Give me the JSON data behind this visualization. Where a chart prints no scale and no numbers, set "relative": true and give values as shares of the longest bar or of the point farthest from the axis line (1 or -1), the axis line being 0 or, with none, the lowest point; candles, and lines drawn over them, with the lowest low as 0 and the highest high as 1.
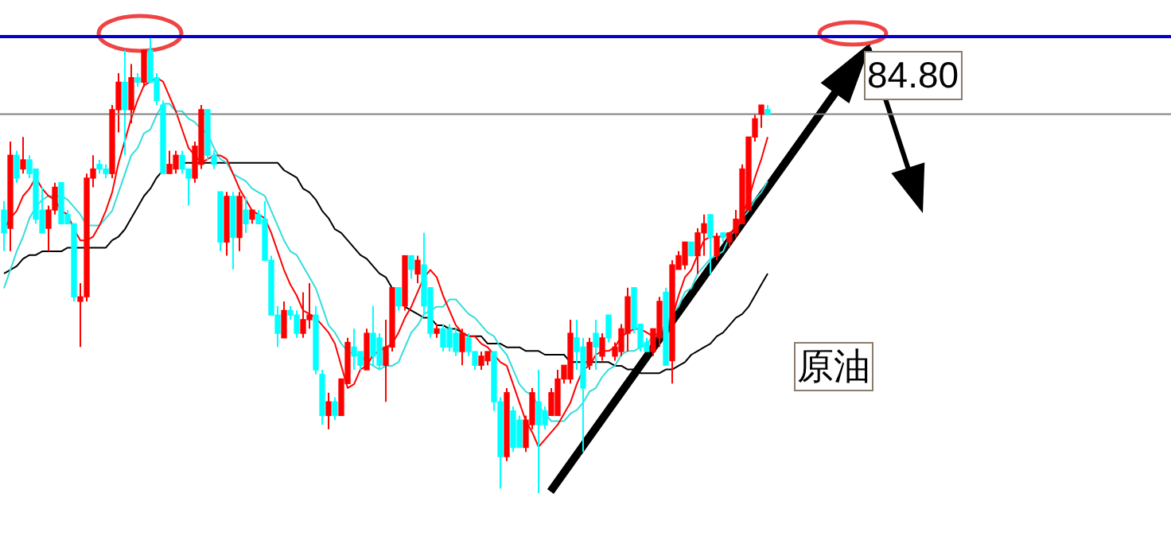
{
  "chart_data": [
    {
      "type": "candlestick",
      "relative": true,
      "categories": [
        null,
        null,
        null,
        null,
        null,
        null,
        null,
        null,
        null,
        null,
        null,
        null,
        null,
        null,
        null,
        null,
        null,
        null,
        null,
        null,
        null,
        null,
        null,
        null,
        null,
        null,
        null,
        null,
        null,
        null,
        null,
        null,
        null,
        null,
        null,
        null,
        null,
        null,
        null,
        null,
        null,
        null,
        null,
        null,
        null,
        null,
        null,
        null,
        null,
        null,
        null,
        null,
        null,
        null,
        null,
        null,
        null,
        null,
        null,
        null,
        null,
        null,
        null,
        null,
        null,
        null,
        null,
        null,
        null,
        null,
        null,
        null,
        null,
        null,
        null,
        null,
        null,
        null,
        null,
        null,
        null,
        null,
        null,
        null,
        null,
        null,
        null,
        null,
        null,
        null,
        null,
        null,
        null,
        null,
        null,
        null,
        null,
        null,
        null,
        null,
        null,
        null,
        null,
        null,
        null,
        null,
        null,
        null,
        null,
        null,
        null,
        null,
        null,
        null,
        null,
        null,
        null,
        null,
        null,
        null,
        null
      ],
      "ohlc": [
        [
          0.62,
          0.64,
          0.53,
          0.57
        ],
        [
          0.58,
          0.77,
          0.53,
          0.74
        ],
        [
          0.74,
          0.75,
          0.68,
          0.69
        ],
        [
          0.71,
          0.78,
          0.7,
          0.73
        ],
        [
          0.73,
          0.74,
          0.69,
          0.7
        ],
        [
          0.71,
          0.71,
          0.59,
          0.6
        ],
        [
          0.62,
          0.67,
          0.57,
          0.57
        ],
        [
          0.58,
          0.63,
          0.53,
          0.62
        ],
        [
          0.62,
          0.68,
          0.61,
          0.67
        ],
        [
          0.68,
          0.68,
          0.59,
          0.59
        ],
        [
          0.61,
          0.62,
          0.59,
          0.59
        ],
        [
          0.59,
          0.59,
          0.42,
          0.43
        ],
        [
          0.42,
          0.46,
          0.32,
          0.43
        ],
        [
          0.43,
          0.7,
          0.42,
          0.69
        ],
        [
          0.69,
          0.74,
          0.67,
          0.71
        ],
        [
          0.72,
          0.73,
          0.7,
          0.71
        ],
        [
          0.71,
          0.72,
          0.69,
          0.7
        ],
        [
          0.7,
          0.85,
          0.69,
          0.84
        ],
        [
          0.84,
          0.92,
          0.79,
          0.9
        ],
        [
          0.9,
          0.97,
          0.74,
          0.84
        ],
        [
          0.84,
          0.94,
          0.81,
          0.91
        ],
        [
          0.91,
          0.92,
          0.89,
          0.9
        ],
        [
          0.9,
          0.97,
          0.89,
          0.97
        ],
        [
          0.97,
          1,
          0.9,
          0.9
        ],
        [
          0.91,
          0.92,
          0.85,
          0.86
        ],
        [
          0.85,
          0.86,
          0.7,
          0.7
        ],
        [
          0.7,
          0.75,
          0.7,
          0.72
        ],
        [
          0.71,
          0.75,
          0.7,
          0.74
        ],
        [
          0.74,
          0.75,
          0.7,
          0.71
        ],
        [
          0.71,
          0.71,
          0.63,
          0.69
        ],
        [
          0.69,
          0.77,
          0.68,
          0.76
        ],
        [
          0.72,
          0.85,
          0.71,
          0.84
        ],
        [
          0.84,
          0.84,
          0.73,
          0.74
        ],
        [
          0.74,
          0.75,
          0.71,
          0.72
        ],
        [
          0.66,
          0.66,
          0.53,
          0.55
        ],
        [
          0.55,
          0.66,
          0.52,
          0.65
        ],
        [
          0.65,
          0.66,
          0.49,
          0.56
        ],
        [
          0.56,
          0.66,
          0.53,
          0.65
        ],
        [
          0.62,
          0.65,
          0.57,
          0.59
        ],
        [
          0.6,
          0.62,
          0.59,
          0.62
        ],
        [
          0.61,
          0.62,
          0.59,
          0.59
        ],
        [
          0.6,
          0.64,
          0.51,
          0.51
        ],
        [
          0.51,
          0.52,
          0.39,
          0.39
        ],
        [
          0.39,
          0.41,
          0.32,
          0.35
        ],
        [
          0.34,
          0.42,
          0.34,
          0.4
        ],
        [
          0.4,
          0.41,
          0.38,
          0.39
        ],
        [
          0.39,
          0.4,
          0.34,
          0.35
        ],
        [
          0.35,
          0.44,
          0.34,
          0.38
        ],
        [
          0.38,
          0.46,
          0.36,
          0.39
        ],
        [
          0.39,
          0.41,
          0.26,
          0.27
        ],
        [
          0.26,
          0.27,
          0.15,
          0.17
        ],
        [
          0.17,
          0.22,
          0.14,
          0.2
        ],
        [
          0.2,
          0.21,
          0.16,
          0.17
        ],
        [
          0.17,
          0.25,
          0.17,
          0.25
        ],
        [
          0.24,
          0.34,
          0.24,
          0.33
        ],
        [
          0.32,
          0.36,
          0.27,
          0.3
        ],
        [
          0.31,
          0.31,
          0.27,
          0.28
        ],
        [
          0.27,
          0.36,
          0.27,
          0.35
        ],
        [
          0.35,
          0.41,
          0.28,
          0.3
        ],
        [
          0.34,
          0.35,
          0.27,
          0.28
        ],
        [
          0.28,
          0.38,
          0.2,
          0.32
        ],
        [
          0.32,
          0.45,
          0.31,
          0.45
        ],
        [
          0.45,
          0.45,
          0.4,
          0.41
        ],
        [
          0.41,
          0.52,
          0.4,
          0.52
        ],
        [
          0.52,
          0.52,
          0.47,
          0.49
        ],
        [
          0.48,
          0.52,
          0.46,
          0.51
        ],
        [
          0.5,
          0.57,
          0.39,
          0.41
        ],
        [
          0.45,
          0.45,
          0.34,
          0.35
        ],
        [
          0.35,
          0.37,
          0.34,
          0.36
        ],
        [
          0.36,
          0.37,
          0.31,
          0.32
        ],
        [
          0.36,
          0.37,
          0.31,
          0.32
        ],
        [
          0.35,
          0.36,
          0.3,
          0.31
        ],
        [
          0.31,
          0.36,
          0.28,
          0.35
        ],
        [
          0.34,
          0.35,
          0.3,
          0.31
        ],
        [
          0.31,
          0.31,
          0.27,
          0.28
        ],
        [
          0.28,
          0.31,
          0.27,
          0.3
        ],
        [
          0.29,
          0.31,
          0.28,
          0.31
        ],
        [
          0.31,
          0.31,
          0.18,
          0.2
        ],
        [
          0.2,
          0.21,
          0.01,
          0.08
        ],
        [
          0.08,
          0.23,
          0.07,
          0.22
        ],
        [
          0.18,
          0.19,
          0.09,
          0.1
        ],
        [
          0.16,
          0.17,
          0.1,
          0.1
        ],
        [
          0.1,
          0.17,
          0.09,
          0.16
        ],
        [
          0.15,
          0.23,
          0.14,
          0.22
        ],
        [
          0.2,
          0.27,
          0,
          0.15
        ],
        [
          0.18,
          0.19,
          0.14,
          0.15
        ],
        [
          0.17,
          0.23,
          0.17,
          0.22
        ],
        [
          0.17,
          0.27,
          0.17,
          0.25
        ],
        [
          0.25,
          0.28,
          0.24,
          0.28
        ],
        [
          0.25,
          0.38,
          0.24,
          0.35
        ],
        [
          0.34,
          0.38,
          0.27,
          0.31
        ],
        [
          0.32,
          0.34,
          0.09,
          0.23
        ],
        [
          0.28,
          0.34,
          0.27,
          0.33
        ],
        [
          0.35,
          0.38,
          0.27,
          0.32
        ],
        [
          0.3,
          0.35,
          0.29,
          0.34
        ],
        [
          0.39,
          0.39,
          0.33,
          0.34
        ],
        [
          0.3,
          0.33,
          0.29,
          0.32
        ],
        [
          0.31,
          0.37,
          0.3,
          0.36
        ],
        [
          0.35,
          0.45,
          0.31,
          0.43
        ],
        [
          0.45,
          0.45,
          0.35,
          0.36
        ],
        [
          0.37,
          0.37,
          0.31,
          0.32
        ],
        [
          0.33,
          0.34,
          0.31,
          0.31
        ],
        [
          0.31,
          0.36,
          0.3,
          0.36
        ],
        [
          0.34,
          0.43,
          0.32,
          0.42
        ],
        [
          0.44,
          0.45,
          0.28,
          0.28
        ],
        [
          0.29,
          0.51,
          0.24,
          0.5
        ],
        [
          0.49,
          0.53,
          0.49,
          0.52
        ],
        [
          0.5,
          0.55,
          0.49,
          0.55
        ],
        [
          0.55,
          0.55,
          0.52,
          0.52
        ],
        [
          0.52,
          0.58,
          0.48,
          0.57
        ],
        [
          0.57,
          0.61,
          0.52,
          0.59
        ],
        [
          0.61,
          0.61,
          0.48,
          0.56
        ],
        [
          0.52,
          0.57,
          0.51,
          0.56
        ],
        [
          0.57,
          0.57,
          0.55,
          0.56
        ],
        [
          0.55,
          0.57,
          0.54,
          0.57
        ],
        [
          0.57,
          0.62,
          0.56,
          0.6
        ],
        [
          0.59,
          0.72,
          0.59,
          0.71
        ],
        [
          0.62,
          0.78,
          0.62,
          0.78
        ],
        [
          0.78,
          0.83,
          0.77,
          0.82
        ],
        [
          0.83,
          0.85,
          0.8,
          0.85
        ],
        [
          0.84,
          0.85,
          0.83,
          0.83
        ]
      ],
      "colors": [
        "#00ffff",
        "#ff0000",
        "#00ffff",
        "#ff0000",
        "#00ffff",
        "#00ffff",
        "#00ffff",
        "#ff0000",
        "#ff0000",
        "#00ffff",
        "#00ffff",
        "#00ffff",
        "#ff0000",
        "#ff0000",
        "#ff0000",
        "#00ffff",
        "#00ffff",
        "#ff0000",
        "#ff0000",
        "#00ffff",
        "#ff0000",
        "#00ffff",
        "#ff0000",
        "#00ffff",
        "#00ffff",
        "#00ffff",
        "#ff0000",
        "#ff0000",
        "#00ffff",
        "#00ffff",
        "#ff0000",
        "#ff0000",
        "#00ffff",
        "#00ffff",
        "#00ffff",
        "#ff0000",
        "#00ffff",
        "#ff0000",
        "#00ffff",
        "#ff0000",
        "#00ffff",
        "#00ffff",
        "#00ffff",
        "#00ffff",
        "#ff0000",
        "#00ffff",
        "#00ffff",
        "#ff0000",
        "#ff0000",
        "#00ffff",
        "#00ffff",
        "#ff0000",
        "#00ffff",
        "#ff0000",
        "#ff0000",
        "#00ffff",
        "#00ffff",
        "#ff0000",
        "#00ffff",
        "#00ffff",
        "#ff0000",
        "#ff0000",
        "#00ffff",
        "#ff0000",
        "#00ffff",
        "#ff0000",
        "#00ffff",
        "#00ffff",
        "#ff0000",
        "#00ffff",
        "#00ffff",
        "#00ffff",
        "#ff0000",
        "#00ffff",
        "#00ffff",
        "#ff0000",
        "#ff0000",
        "#00ffff",
        "#00ffff",
        "#ff0000",
        "#00ffff",
        "#00ffff",
        "#ff0000",
        "#ff0000",
        "#00ffff",
        "#00ffff",
        "#ff0000",
        "#ff0000",
        "#ff0000",
        "#ff0000",
        "#00ffff",
        "#00ffff",
        "#ff0000",
        "#00ffff",
        "#ff0000",
        "#00ffff",
        "#ff0000",
        "#ff0000",
        "#ff0000",
        "#00ffff",
        "#00ffff",
        "#00ffff",
        "#ff0000",
        "#ff0000",
        "#00ffff",
        "#ff0000",
        "#ff0000",
        "#ff0000",
        "#00ffff",
        "#ff0000",
        "#ff0000",
        "#00ffff",
        "#ff0000",
        "#00ffff",
        "#ff0000",
        "#ff0000",
        "#ff0000",
        "#ff0000",
        "#ff0000",
        "#ff0000",
        "#00ffff"
      ],
      "ref_lines": [
        {
          "axis": "y",
          "value": 1,
          "color": "#0000cc"
        },
        {
          "axis": "y",
          "value": 0.83,
          "color": "#808080"
        }
      ],
      "annotations": [
        "84.80",
        "原油"
      ],
      "legend": false,
      "tick_labels": false
    },
    {
      "type": "line",
      "relative": true,
      "categories": [
        null,
        null,
        null,
        null,
        null,
        null,
        null,
        null,
        null,
        null,
        null,
        null,
        null,
        null,
        null,
        null,
        null,
        null,
        null,
        null,
        null,
        null,
        null,
        null,
        null,
        null,
        null,
        null,
        null,
        null,
        null,
        null,
        null,
        null,
        null,
        null,
        null,
        null,
        null,
        null,
        null,
        null,
        null,
        null,
        null,
        null,
        null,
        null,
        null,
        null,
        null,
        null,
        null,
        null,
        null,
        null,
        null,
        null,
        null,
        null,
        null,
        null,
        null,
        null,
        null,
        null,
        null,
        null,
        null,
        null,
        null,
        null,
        null,
        null,
        null,
        null,
        null,
        null,
        null,
        null,
        null,
        null,
        null,
        null,
        null,
        null,
        null,
        null,
        null,
        null,
        null,
        null,
        null,
        null,
        null,
        null,
        null,
        null,
        null,
        null,
        null,
        null,
        null,
        null,
        null,
        null,
        null,
        null,
        null,
        null,
        null,
        null,
        null,
        null,
        null,
        null,
        null,
        null,
        null,
        null,
        null
      ],
      "series": [
        {
          "color": "#ff0000",
          "values": [
            0.59,
            0.62,
            0.64,
            0.68,
            0.7,
            0.73,
            0.7,
            0.68,
            0.67,
            0.64,
            0.63,
            0.59,
            0.56,
            0.56,
            0.57,
            0.6,
            0.64,
            0.69,
            0.77,
            0.83,
            0.89,
            0.94,
            0.98,
            0.99,
            1,
            0.99,
            0.95,
            0.91,
            0.86,
            0.81,
            0.79,
            0.77,
            0.78,
            0.79,
            0.79,
            0.78,
            0.74,
            0.7,
            0.67,
            0.64,
            0.63,
            0.62,
            0.58,
            0.53,
            0.48,
            0.44,
            0.41,
            0.37,
            0.36,
            0.35,
            0.33,
            0.31,
            0.28,
            0.22,
            0.16,
            0.17,
            0.21,
            0.22,
            0.25,
            0.26,
            0.27,
            0.28,
            0.31,
            0.35,
            0.38,
            0.42,
            0.46,
            0.48,
            0.46,
            0.41,
            0.37,
            0.33,
            0.31,
            0.3,
            0.3,
            0.28,
            0.27,
            0.25,
            0.23,
            0.22,
            0.17,
            0.12,
            0.07,
            0.04,
            0,
            0.02,
            0.04,
            0.06,
            0.09,
            0.12,
            0.17,
            0.21,
            0.22,
            0.25,
            0.26,
            0.26,
            0.27,
            0.3,
            0.31,
            0.32,
            0.32,
            0.31,
            0.3,
            0.31,
            0.32,
            0.35,
            0.41,
            0.46,
            0.48,
            0.52,
            0.56,
            0.57,
            0.57,
            0.57,
            0.58,
            0.59,
            0.63,
            0.67,
            0.73,
            0.78,
            0.84
          ]
        },
        {
          "color": "#33dddd",
          "values": [
            0.43,
            0.48,
            0.53,
            0.57,
            0.62,
            0.65,
            0.67,
            0.68,
            0.68,
            0.68,
            0.67,
            0.65,
            0.63,
            0.6,
            0.6,
            0.6,
            0.62,
            0.64,
            0.69,
            0.74,
            0.79,
            0.81,
            0.85,
            0.86,
            0.9,
            0.93,
            0.93,
            0.91,
            0.91,
            0.89,
            0.88,
            0.86,
            0.85,
            0.81,
            0.78,
            0.77,
            0.74,
            0.73,
            0.72,
            0.7,
            0.69,
            0.68,
            0.64,
            0.6,
            0.56,
            0.53,
            0.52,
            0.49,
            0.46,
            0.43,
            0.38,
            0.33,
            0.31,
            0.28,
            0.26,
            0.25,
            0.25,
            0.23,
            0.22,
            0.21,
            0.22,
            0.22,
            0.23,
            0.27,
            0.31,
            0.33,
            0.36,
            0.37,
            0.38,
            0.38,
            0.4,
            0.4,
            0.38,
            0.36,
            0.35,
            0.33,
            0.31,
            0.3,
            0.27,
            0.25,
            0.21,
            0.17,
            0.15,
            0.14,
            0.11,
            0.09,
            0.07,
            0.07,
            0.07,
            0.09,
            0.1,
            0.12,
            0.15,
            0.16,
            0.19,
            0.21,
            0.22,
            0.25,
            0.26,
            0.26,
            0.27,
            0.28,
            0.3,
            0.31,
            0.33,
            0.36,
            0.38,
            0.42,
            0.43,
            0.47,
            0.49,
            0.51,
            0.52,
            0.53,
            0.57,
            0.59,
            0.62,
            0.64,
            0.67,
            0.69,
            0.72
          ]
        },
        {
          "color": "#000000",
          "values": [
            0.47,
            0.48,
            0.49,
            0.51,
            0.52,
            0.52,
            0.53,
            0.53,
            0.53,
            0.53,
            0.54,
            0.54,
            0.54,
            0.54,
            0.54,
            0.54,
            0.54,
            0.56,
            0.57,
            0.59,
            0.62,
            0.65,
            0.68,
            0.7,
            0.73,
            0.75,
            null,
            null,
            0.77,
            0.77,
            0.77,
            0.77,
            0.77,
            0.77,
            0.77,
            0.77,
            0.77,
            0.77,
            0.77,
            0.77,
            0.77,
            0.77,
            0.77,
            0.77,
            0.75,
            0.74,
            0.73,
            0.7,
            0.69,
            0.67,
            0.64,
            0.62,
            0.59,
            0.58,
            0.56,
            0.54,
            0.52,
            0.51,
            0.49,
            0.47,
            0.46,
            0.43,
            null,
            0.38,
            0.37,
            0.36,
            0.35,
            0.35,
            0.33,
            0.33,
            0.32,
            0.32,
            0.31,
            0.3,
            0.3,
            0.3,
            0.28,
            0.28,
            0.28,
            0.27,
            0.27,
            0.27,
            0.26,
            0.26,
            0.26,
            0.25,
            0.25,
            0.25,
            0.25,
            0.23,
            0.23,
            0.23,
            0.23,
            0.23,
            0.23,
            0.23,
            0.22,
            0.22,
            0.21,
            0.21,
            0.2,
            0.2,
            0.2,
            0.2,
            0.21,
            0.21,
            0.22,
            0.23,
            0.25,
            0.26,
            0.27,
            0.28,
            0.3,
            0.31,
            0.33,
            0.35,
            0.36,
            0.38,
            0.41,
            0.44,
            0.47
          ]
        }
      ],
      "legend": false,
      "tick_labels": false,
      "marker": "none",
      "line_style": "solid"
    }
  ]
}
